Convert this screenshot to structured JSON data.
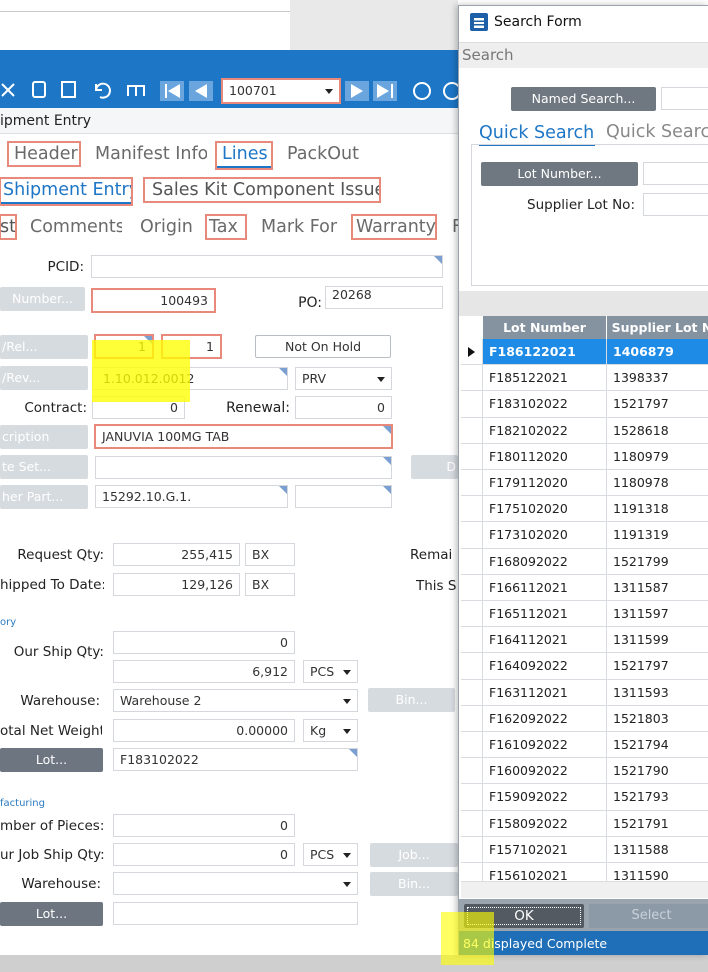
{
  "toolbar": {
    "record_id": "100701"
  },
  "form": {
    "title": "ipment Entry",
    "tabs": [
      "Header",
      "Manifest Info",
      "Lines",
      "PackOut"
    ],
    "subtabs": [
      "Shipment Entry",
      "Sales Kit Component Issue"
    ],
    "detail_tabs": [
      "st",
      "Comments",
      "Origin",
      "Tax",
      "Mark For",
      "Warranty",
      "F"
    ],
    "pcid_label": "PCID:",
    "number_button": "Number...",
    "number_value": "100493",
    "po_label": "PO:",
    "po_value": "20268",
    "rel_button": "/Rel...",
    "rel_values": [
      "1",
      "1"
    ],
    "hold_button": "Not On Hold",
    "rev_button": "/Rev...",
    "rev_value": "1.10.012.0012",
    "rev_select": "PRV",
    "contract_label": "Contract:",
    "contract_value": "0",
    "renewal_label": "Renewal:",
    "renewal_value": "0",
    "description_button": "cription",
    "description_value": "JANUVIA 100MG TAB",
    "rate_set_button": "te Set...",
    "d_button": "D",
    "other_part_button": "her Part...",
    "other_part_value": "15292.10.G.1.",
    "request_qty_label": "Request Qty:",
    "request_qty": "255,415",
    "request_uom": "BX",
    "remaining_label": "Remai",
    "shipped_label": "hipped To Date:",
    "shipped_qty": "129,126",
    "shipped_uom": "BX",
    "this_label": "This S",
    "inventory_section": "ory",
    "our_ship_qty_label": "Our Ship Qty:",
    "our_ship_qty": "0",
    "our_ship_qty_pcs": "6,912",
    "our_ship_uom": "PCS",
    "warehouse_label": "Warehouse:",
    "warehouse": "Warehouse 2",
    "bin_button": "Bin...",
    "net_weight_label": "otal Net Weight:",
    "net_weight": "0.00000",
    "weight_uom": "Kg",
    "lot_button": "Lot...",
    "lot": "F183102022",
    "manufacturing_section": "facturing",
    "pieces_label": "mber of Pieces:",
    "pieces": "0",
    "job_ship_label": "ur Job Ship Qty:",
    "job_ship_qty": "0",
    "job_ship_uom": "PCS",
    "job_button": "Job...",
    "mfg_warehouse_label": "Warehouse:",
    "mfg_bin_button": "Bin...",
    "mfg_lot_button": "Lot..."
  },
  "search": {
    "title": "Search Form",
    "section": "Search",
    "named_search_button": "Named Search...",
    "tabs": [
      "Quick Search",
      "Quick Searc"
    ],
    "lot_number_button": "Lot Number...",
    "supplier_lot_label": "Supplier Lot No:",
    "columns": [
      "Lot Number",
      "Supplier Lot N"
    ],
    "rows": [
      [
        "F186122021",
        "1406879"
      ],
      [
        "F185122021",
        "1398337"
      ],
      [
        "F183102022",
        "1521797"
      ],
      [
        "F182102022",
        "1528618"
      ],
      [
        "F180112020",
        "1180979"
      ],
      [
        "F179112020",
        "1180978"
      ],
      [
        "F175102020",
        "1191318"
      ],
      [
        "F173102020",
        "1191319"
      ],
      [
        "F168092022",
        "1521799"
      ],
      [
        "F166112021",
        "1311587"
      ],
      [
        "F165112021",
        "1311597"
      ],
      [
        "F164112021",
        "1311599"
      ],
      [
        "F164092022",
        "1521797"
      ],
      [
        "F163112021",
        "1311593"
      ],
      [
        "F162092022",
        "1521803"
      ],
      [
        "F161092022",
        "1521794"
      ],
      [
        "F160092022",
        "1521790"
      ],
      [
        "F159092022",
        "1521793"
      ],
      [
        "F158092022",
        "1521791"
      ],
      [
        "F157102021",
        "1311588"
      ],
      [
        "F156102021",
        "1311590"
      ]
    ],
    "ok_button": "OK",
    "select_button": "Select",
    "status": "84 displayed Complete"
  }
}
